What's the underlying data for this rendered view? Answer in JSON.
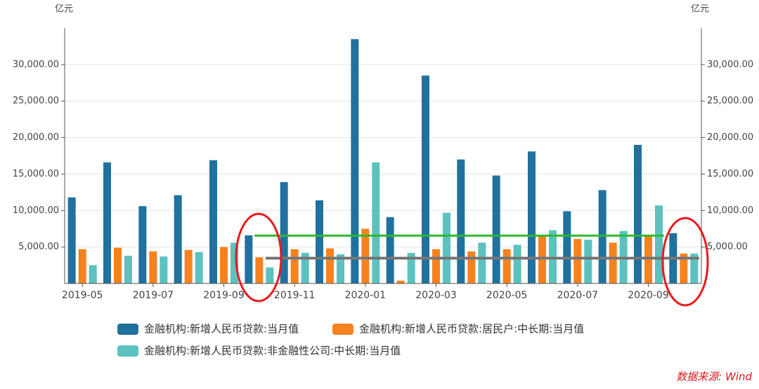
{
  "chart_data": {
    "type": "bar",
    "y_label": "亿元",
    "y2_label": "亿元",
    "source": "数据来源: Wind",
    "categories": [
      "2019-05",
      null,
      "2019-07",
      null,
      "2019-09",
      null,
      "2019-11",
      null,
      "2020-01",
      null,
      "2020-03",
      null,
      "2020-05",
      null,
      "2020-07",
      null,
      "2020-09",
      null
    ],
    "series": [
      {
        "name": "金融机构:新增人民币贷款:当月值",
        "color": "#21719f",
        "values": [
          11800,
          16600,
          10600,
          12100,
          16900,
          6600,
          13900,
          11400,
          33500,
          9100,
          28500,
          17000,
          14800,
          18100,
          9900,
          12800,
          19000,
          6900
        ]
      },
      {
        "name": "金融机构:新增人民币贷款:居民户:中长期:当月值",
        "color": "#f5821f",
        "values": [
          4700,
          4900,
          4400,
          4600,
          5000,
          3600,
          4700,
          4800,
          7500,
          400,
          4700,
          4400,
          4700,
          6500,
          6100,
          5600,
          6500,
          4100
        ]
      },
      {
        "name": "金融机构:新增人民币贷款:非金融性公司:中长期:当月值",
        "color": "#5bc2c0",
        "values": [
          2500,
          3800,
          3700,
          4300,
          5600,
          2200,
          4200,
          4000,
          16600,
          4200,
          9700,
          5600,
          5300,
          7300,
          6000,
          7200,
          10700,
          4100
        ]
      }
    ],
    "ylim": [
      0,
      35000
    ],
    "yticks": [
      {
        "value": 5000,
        "label": "5,000.00"
      },
      {
        "value": 10000,
        "label": "10,000.00"
      },
      {
        "value": 15000,
        "label": "15,000.00"
      },
      {
        "value": 20000,
        "label": "20,000.00"
      },
      {
        "value": 25000,
        "label": "25,000.00"
      },
      {
        "value": 30000,
        "label": "30,000.00"
      }
    ],
    "y2lim": [
      0,
      35000
    ],
    "y2ticks": [
      {
        "value": 5000,
        "label": "5,000.00"
      },
      {
        "value": 10000,
        "label": "10,000.00"
      },
      {
        "value": 15000,
        "label": "15,000.00"
      },
      {
        "value": 20000,
        "label": "20,000.00"
      },
      {
        "value": 25000,
        "label": "25,000.00"
      },
      {
        "value": 30000,
        "label": "30,000.00"
      }
    ],
    "grid": true
  }
}
